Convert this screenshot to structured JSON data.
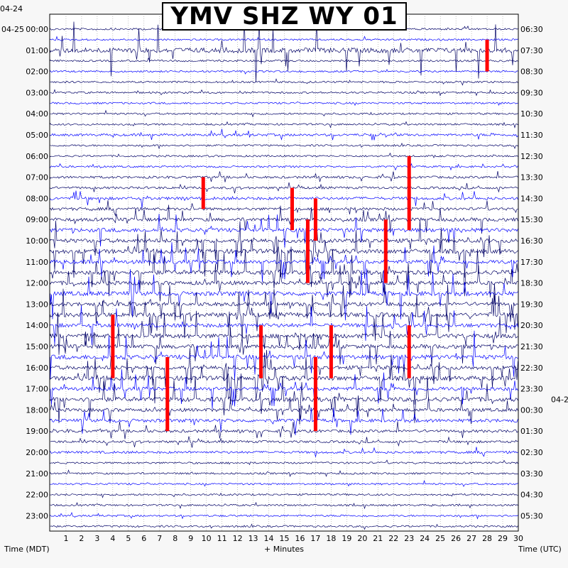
{
  "chart_data": {
    "type": "line",
    "title": "YMV SHZ WY 01",
    "xlabel": "+ Minutes",
    "ylabel_left": "Time (MDT)",
    "ylabel_right": "Time (UTC)",
    "x_ticks": [
      "1",
      "2",
      "3",
      "4",
      "5",
      "6",
      "7",
      "8",
      "9",
      "10",
      "11",
      "12",
      "13",
      "14",
      "15",
      "16",
      "17",
      "18",
      "19",
      "20",
      "21",
      "22",
      "23",
      "24",
      "25",
      "26",
      "27",
      "28",
      "29",
      "30"
    ],
    "xlim": [
      0,
      30
    ],
    "left_date_labels": [
      "04-24",
      "04-25"
    ],
    "right_date_label": "04-2",
    "left_hour_labels": [
      "00:00",
      "01:00",
      "02:00",
      "03:00",
      "04:00",
      "05:00",
      "06:00",
      "07:00",
      "08:00",
      "09:00",
      "10:00",
      "11:00",
      "12:00",
      "13:00",
      "14:00",
      "15:00",
      "16:00",
      "17:00",
      "18:00",
      "19:00",
      "20:00",
      "21:00",
      "22:00",
      "23:00"
    ],
    "right_hour_labels": [
      "06:30",
      "07:30",
      "08:30",
      "09:30",
      "10:30",
      "11:30",
      "12:30",
      "13:30",
      "14:30",
      "15:30",
      "16:30",
      "17:30",
      "18:30",
      "19:30",
      "20:30",
      "21:30",
      "22:30",
      "23:30",
      "00:30",
      "01:30",
      "02:30",
      "03:30",
      "04:30",
      "05:30"
    ],
    "colors": {
      "dark_trace": "#000066",
      "blue_trace": "#0000ff",
      "clipped": "#ff0000",
      "grid": "#888888",
      "background": "#ffffff"
    },
    "rows_per_hour": 2,
    "row_activity": [
      2,
      2,
      8,
      2,
      2,
      2,
      2,
      2,
      2,
      2,
      3,
      2,
      2,
      2,
      3,
      3,
      4,
      4,
      5,
      6,
      6,
      7,
      6,
      7,
      6,
      7,
      6,
      7,
      6,
      7,
      6,
      7,
      6,
      7,
      6,
      7,
      5,
      5,
      4,
      3,
      3,
      2,
      2,
      2,
      2,
      2,
      2,
      2
    ],
    "clipped_events": [
      {
        "minute": 28.0,
        "hour": 0.5,
        "span_hours": 1.5
      },
      {
        "minute": 9.8,
        "hour": 7.0,
        "span_hours": 1.5
      },
      {
        "minute": 15.5,
        "hour": 7.5,
        "span_hours": 2.0
      },
      {
        "minute": 23.0,
        "hour": 6.0,
        "span_hours": 3.5
      },
      {
        "minute": 17.0,
        "hour": 8.0,
        "span_hours": 2.0
      },
      {
        "minute": 21.5,
        "hour": 9.0,
        "span_hours": 3.0
      },
      {
        "minute": 16.5,
        "hour": 9.0,
        "span_hours": 3.0
      },
      {
        "minute": 4.0,
        "hour": 13.5,
        "span_hours": 3.0
      },
      {
        "minute": 7.5,
        "hour": 15.5,
        "span_hours": 3.5
      },
      {
        "minute": 13.5,
        "hour": 14.0,
        "span_hours": 2.5
      },
      {
        "minute": 18.0,
        "hour": 14.0,
        "span_hours": 2.5
      },
      {
        "minute": 17.0,
        "hour": 15.5,
        "span_hours": 3.5
      },
      {
        "minute": 23.0,
        "hour": 14.0,
        "span_hours": 2.5
      }
    ]
  }
}
